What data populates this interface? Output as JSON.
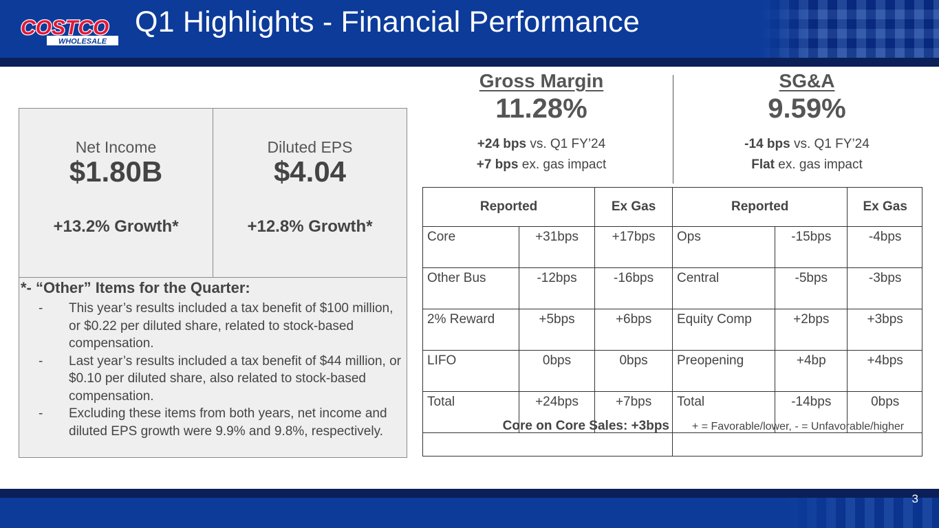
{
  "header": {
    "logo_text": "COSTCO",
    "logo_subtext": "WHOLESALE",
    "title": "Q1 Highlights - Financial Performance",
    "brand_colors": {
      "blue": "#0c3b9a",
      "red": "#e31837",
      "navy": "#0b1f58"
    }
  },
  "kpis": [
    {
      "label": "Net Income",
      "value": "$1.80B",
      "growth": "+13.2% Growth*"
    },
    {
      "label": "Diluted EPS",
      "value": "$4.04",
      "growth": "+12.8% Growth*"
    }
  ],
  "notes": {
    "heading": "*- “Other” Items for the Quarter:",
    "dash": "-",
    "items": [
      "This year’s results included a tax benefit of $100 million, or $0.22 per diluted share, related to stock-based compensation.",
      "Last year’s results included a tax benefit of $44 million, or $0.10 per diluted share, also related to stock-based compensation.",
      "Excluding these items from both years, net income and diluted EPS growth were 9.9% and 9.8%, respectively."
    ]
  },
  "gross_margin": {
    "title": "Gross Margin",
    "value": "11.28%",
    "line1_bold": "+24 bps",
    "line1_rest": " vs. Q1 FY’24",
    "line2_bold": "+7 bps",
    "line2_rest": " ex. gas impact"
  },
  "sga": {
    "title": "SG&A",
    "value": "9.59%",
    "line1_bold": "-14 bps",
    "line1_rest": " vs. Q1 FY’24",
    "line2_bold": "Flat",
    "line2_rest": " ex. gas impact"
  },
  "gm_table": {
    "headers": [
      "Reported",
      "Ex Gas"
    ],
    "rows": [
      [
        "Core",
        "+31bps",
        "+17bps"
      ],
      [
        "Other Bus",
        "-12bps",
        "-16bps"
      ],
      [
        "2% Reward",
        "+5bps",
        "+6bps"
      ],
      [
        "LIFO",
        "0bps",
        "0bps"
      ],
      [
        "Total",
        "+24bps",
        "+7bps"
      ]
    ],
    "footnote": "Core on Core Sales: +3bps"
  },
  "sga_table": {
    "headers": [
      "Reported",
      "Ex Gas"
    ],
    "rows": [
      [
        "Ops",
        "-15bps",
        "-4bps"
      ],
      [
        "Central",
        "-5bps",
        "-3bps"
      ],
      [
        "Equity Comp",
        "+2bps",
        "+3bps"
      ],
      [
        "Preopening",
        "+4bp",
        "+4bps"
      ],
      [
        "Total",
        "-14bps",
        "0bps"
      ]
    ],
    "footnote": "+ = Favorable/lower, - = Unfavorable/higher"
  },
  "footer": {
    "page_number": "3"
  }
}
